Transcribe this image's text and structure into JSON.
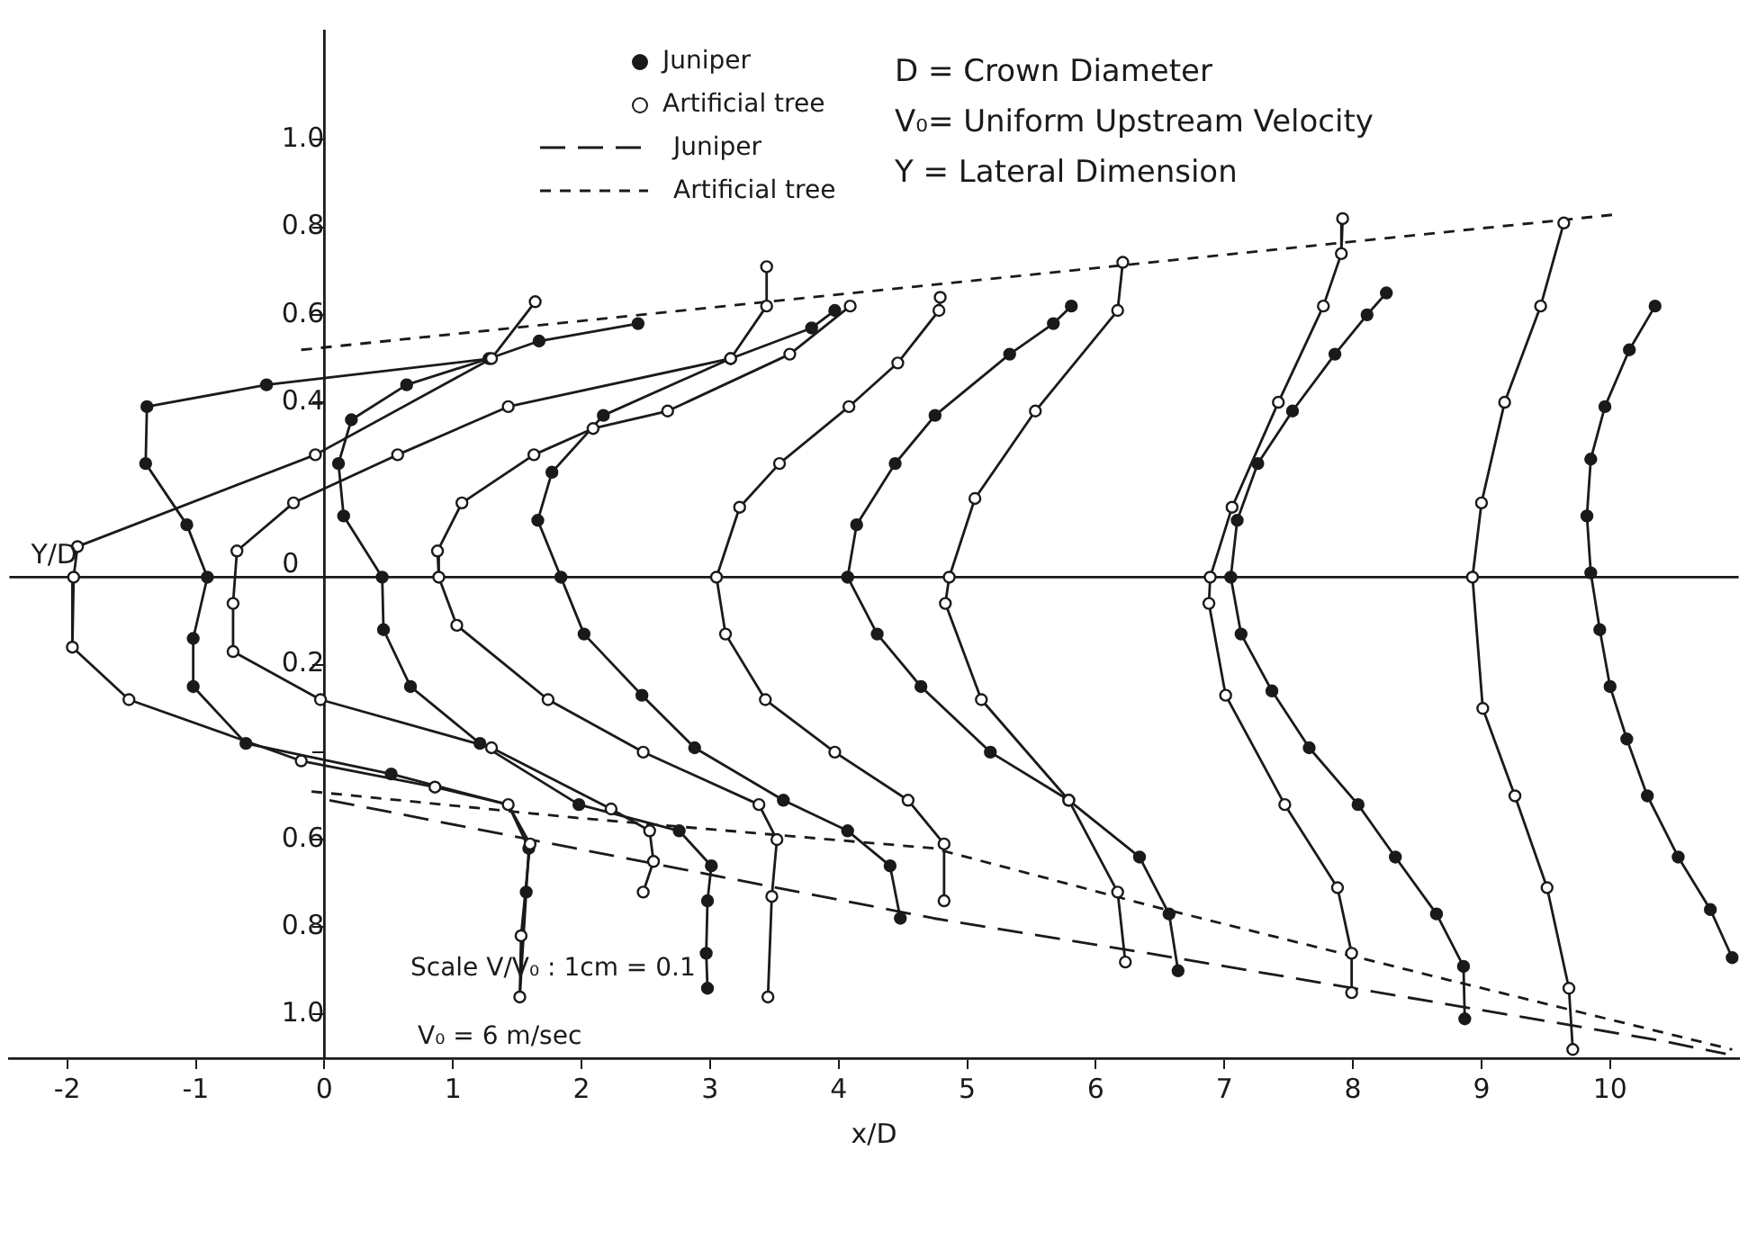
{
  "chart_data": {
    "type": "line",
    "xlabel": "x/D",
    "ylabel": "Y/D",
    "xlim": [
      -2.45,
      11.0
    ],
    "ylim": [
      -1.1,
      1.25
    ],
    "xticks": [
      -2,
      -1,
      0,
      1,
      2,
      3,
      4,
      5,
      6,
      7,
      8,
      9,
      10
    ],
    "yticks": [
      {
        "value": 1,
        "label": "1.0"
      },
      0.8,
      0.6,
      0.4,
      0,
      {
        "value": -0.2,
        "label": "0.2"
      },
      {
        "value": -0.4,
        "label": null
      },
      {
        "value": -0.6,
        "label": "0.6"
      },
      {
        "value": -0.8,
        "label": "0.8"
      },
      {
        "value": -1,
        "label": "1.0"
      }
    ],
    "grid": false,
    "legend": "top",
    "ref_lines": [
      {
        "axis": "y",
        "value": 0
      }
    ],
    "annotations": [
      "D = Crown Diameter",
      "V₀= Uniform Upstream Velocity",
      "Y = Lateral Dimension",
      "Scale V/V₀ : 1cm = 0.1",
      "V₀ = 6 m/sec"
    ],
    "series": [
      {
        "color": "#1a1a1a",
        "marker": "none",
        "line_style": "solid",
        "x": [
          1.64,
          1.3,
          -0.07,
          -1.92,
          -1.95,
          -1.96,
          -1.52,
          -0.18,
          0.86,
          1.43,
          1.6,
          1.53,
          1.52
        ],
        "values": [
          0.63,
          0.5,
          0.28,
          0.07,
          0,
          -0.16,
          -0.28,
          -0.42,
          -0.48,
          -0.52,
          -0.61,
          -0.82,
          -0.96
        ]
      },
      {
        "color": "#1a1a1a",
        "marker": "none",
        "line_style": "solid",
        "x": [
          1.3,
          -0.45,
          -1.38,
          -1.39,
          -1.07,
          -0.91,
          -1.02,
          -1.02,
          -0.61,
          0.52,
          1.43,
          1.59,
          1.57,
          1.52
        ],
        "values": [
          0.5,
          0.44,
          0.39,
          0.26,
          0.12,
          0,
          -0.14,
          -0.25,
          -0.38,
          -0.45,
          -0.52,
          -0.62,
          -0.72,
          -0.96
        ]
      },
      {
        "color": "#1a1a1a",
        "marker": "none",
        "line_style": "solid",
        "x": [
          3.44,
          3.44,
          3.16,
          1.43,
          0.57,
          -0.24,
          -0.68,
          -0.71,
          -0.71,
          -0.03,
          1.3,
          2.23,
          2.53,
          2.56,
          2.48
        ],
        "values": [
          0.71,
          0.62,
          0.5,
          0.39,
          0.28,
          0.17,
          0.06,
          -0.06,
          -0.17,
          -0.28,
          -0.39,
          -0.53,
          -0.58,
          -0.65,
          -0.72
        ]
      },
      {
        "color": "#1a1a1a",
        "marker": "none",
        "line_style": "solid",
        "x": [
          2.44,
          1.67,
          1.28,
          0.64,
          0.21,
          0.11,
          0.15,
          0.45,
          0.46,
          0.67,
          1.21,
          1.98,
          2.76,
          3.01,
          2.98,
          2.97,
          2.98
        ],
        "values": [
          0.58,
          0.54,
          0.5,
          0.44,
          0.36,
          0.26,
          0.14,
          0,
          -0.12,
          -0.25,
          -0.38,
          -0.52,
          -0.58,
          -0.66,
          -0.74,
          -0.86,
          -0.94
        ]
      },
      {
        "color": "#1a1a1a",
        "marker": "none",
        "line_style": "solid",
        "x": [
          4.09,
          3.62,
          2.67,
          2.09,
          1.63,
          1.07,
          0.88,
          0.89,
          1.03,
          1.74,
          2.48,
          3.38,
          3.52,
          3.48,
          3.45
        ],
        "values": [
          0.62,
          0.51,
          0.38,
          0.34,
          0.28,
          0.17,
          0.06,
          0,
          -0.11,
          -0.28,
          -0.4,
          -0.52,
          -0.6,
          -0.73,
          -0.96
        ]
      },
      {
        "color": "#1a1a1a",
        "marker": "none",
        "line_style": "solid",
        "x": [
          3.97,
          3.79,
          3.16,
          2.17,
          1.77,
          1.66,
          1.84,
          2.02,
          2.47,
          2.88,
          3.57,
          4.07,
          4.4,
          4.48
        ],
        "values": [
          0.61,
          0.57,
          0.5,
          0.37,
          0.24,
          0.13,
          0,
          -0.13,
          -0.27,
          -0.39,
          -0.51,
          -0.58,
          -0.66,
          -0.78
        ]
      },
      {
        "color": "#1a1a1a",
        "marker": "none",
        "line_style": "solid",
        "x": [
          4.79,
          4.78,
          4.46,
          4.08,
          3.54,
          3.23,
          3.05,
          3.12,
          3.43,
          3.97,
          4.54,
          4.82,
          4.82
        ],
        "values": [
          0.64,
          0.61,
          0.49,
          0.39,
          0.26,
          0.16,
          0,
          -0.13,
          -0.28,
          -0.4,
          -0.51,
          -0.61,
          -0.74
        ]
      },
      {
        "color": "#1a1a1a",
        "marker": "none",
        "line_style": "solid",
        "x": [
          5.81,
          5.67,
          5.33,
          4.75,
          4.44,
          4.14,
          4.07,
          4.3,
          4.64,
          5.18,
          5.79,
          6.34,
          6.57,
          6.64
        ],
        "values": [
          0.62,
          0.58,
          0.51,
          0.37,
          0.26,
          0.12,
          0,
          -0.13,
          -0.25,
          -0.4,
          -0.51,
          -0.64,
          -0.77,
          -0.9
        ]
      },
      {
        "color": "#1a1a1a",
        "marker": "none",
        "line_style": "solid",
        "x": [
          6.21,
          6.17,
          5.53,
          5.06,
          4.86,
          4.83,
          5.11,
          5.79,
          6.17,
          6.23
        ],
        "values": [
          0.72,
          0.61,
          0.38,
          0.18,
          0,
          -0.06,
          -0.28,
          -0.51,
          -0.72,
          -0.88
        ]
      },
      {
        "color": "#1a1a1a",
        "marker": "none",
        "line_style": "solid",
        "x": [
          7.92,
          7.91,
          7.77,
          7.42,
          7.06,
          6.89,
          6.88,
          7.01,
          7.47,
          7.88,
          7.99,
          7.99
        ],
        "values": [
          0.82,
          0.74,
          0.62,
          0.4,
          0.16,
          0,
          -0.06,
          -0.27,
          -0.52,
          -0.71,
          -0.86,
          -0.95
        ]
      },
      {
        "color": "#1a1a1a",
        "marker": "none",
        "line_style": "solid",
        "x": [
          8.26,
          8.11,
          7.86,
          7.53,
          7.26,
          7.1,
          7.05,
          7.13,
          7.37,
          7.66,
          8.04,
          8.33,
          8.65,
          8.86,
          8.87
        ],
        "values": [
          0.65,
          0.6,
          0.51,
          0.38,
          0.26,
          0.13,
          0,
          -0.13,
          -0.26,
          -0.39,
          -0.52,
          -0.64,
          -0.77,
          -0.89,
          -1.01
        ]
      },
      {
        "color": "#1a1a1a",
        "marker": "none",
        "line_style": "solid",
        "x": [
          9.64,
          9.46,
          9.18,
          9.0,
          8.93,
          9.01,
          9.26,
          9.51,
          9.68,
          9.71
        ],
        "values": [
          0.81,
          0.62,
          0.4,
          0.17,
          0,
          -0.3,
          -0.5,
          -0.71,
          -0.94,
          -1.08
        ]
      },
      {
        "color": "#1a1a1a",
        "marker": "none",
        "line_style": "solid",
        "x": [
          10.35,
          10.15,
          9.96,
          9.85,
          9.82,
          9.85,
          9.92,
          10.0,
          10.13,
          10.29,
          10.53,
          10.78,
          10.95
        ],
        "values": [
          0.62,
          0.52,
          0.39,
          0.27,
          0.14,
          0.01,
          -0.12,
          -0.25,
          -0.37,
          -0.5,
          -0.64,
          -0.76,
          -0.87
        ]
      },
      {
        "name": "Juniper",
        "type": "scatter",
        "color": "#1a1a1a",
        "marker": "circle",
        "x": [
          -0.45,
          -1.38,
          -1.39,
          -1.07,
          -0.91,
          -1.02,
          -1.02,
          -0.61,
          0.52,
          1.59,
          1.57,
          2.44,
          1.67,
          1.28,
          0.64,
          0.21,
          0.11,
          0.15,
          0.45,
          0.46,
          0.67,
          1.21,
          1.98,
          2.76,
          3.01,
          2.98,
          2.97,
          2.98,
          3.97,
          3.79,
          3.16,
          2.17,
          1.77,
          1.66,
          1.84,
          2.02,
          2.47,
          2.88,
          3.57,
          4.07,
          4.4,
          4.48,
          5.81,
          5.67,
          5.33,
          4.75,
          4.44,
          4.14,
          4.07,
          4.3,
          4.64,
          5.18,
          5.79,
          6.34,
          6.57,
          6.64,
          8.26,
          8.11,
          7.86,
          7.53,
          7.26,
          7.1,
          7.05,
          7.13,
          7.37,
          7.66,
          8.04,
          8.33,
          8.65,
          8.86,
          8.87,
          10.35,
          10.15,
          9.96,
          9.85,
          9.82,
          9.85,
          9.92,
          10.0,
          10.13,
          10.29,
          10.53,
          10.78,
          10.95
        ],
        "values": [
          0.44,
          0.39,
          0.26,
          0.12,
          0,
          -0.14,
          -0.25,
          -0.38,
          -0.45,
          -0.62,
          -0.72,
          0.58,
          0.54,
          0.5,
          0.44,
          0.36,
          0.26,
          0.14,
          0,
          -0.12,
          -0.25,
          -0.38,
          -0.52,
          -0.58,
          -0.66,
          -0.74,
          -0.86,
          -0.94,
          0.61,
          0.57,
          0.5,
          0.37,
          0.24,
          0.13,
          0,
          -0.13,
          -0.27,
          -0.39,
          -0.51,
          -0.58,
          -0.66,
          -0.78,
          0.62,
          0.58,
          0.51,
          0.37,
          0.26,
          0.12,
          0,
          -0.13,
          -0.25,
          -0.4,
          -0.51,
          -0.64,
          -0.77,
          -0.9,
          0.65,
          0.6,
          0.51,
          0.38,
          0.26,
          0.13,
          0,
          -0.13,
          -0.26,
          -0.39,
          -0.52,
          -0.64,
          -0.77,
          -0.89,
          -1.01,
          0.62,
          0.52,
          0.39,
          0.27,
          0.14,
          0.01,
          -0.12,
          -0.25,
          -0.37,
          -0.5,
          -0.64,
          -0.76,
          -0.87
        ]
      },
      {
        "name": "Artificial tree",
        "type": "scatter",
        "color": "#ffffff",
        "marker": "circle",
        "x": [
          1.64,
          1.3,
          -0.07,
          -1.92,
          -1.95,
          -1.96,
          -1.52,
          -0.18,
          0.86,
          1.43,
          1.6,
          1.53,
          1.52,
          3.44,
          3.44,
          3.16,
          1.43,
          0.57,
          -0.24,
          -0.68,
          -0.71,
          -0.71,
          -0.03,
          1.3,
          2.23,
          2.53,
          2.56,
          2.48,
          4.09,
          3.62,
          2.67,
          2.09,
          1.63,
          1.07,
          0.88,
          0.89,
          1.03,
          1.74,
          2.48,
          3.38,
          3.52,
          3.48,
          3.45,
          4.79,
          4.78,
          4.46,
          4.08,
          3.54,
          3.23,
          3.05,
          3.12,
          3.43,
          3.97,
          4.54,
          4.82,
          4.82,
          6.21,
          6.17,
          5.53,
          5.06,
          4.86,
          4.83,
          5.11,
          5.79,
          6.17,
          6.23,
          7.92,
          7.91,
          7.77,
          7.42,
          7.06,
          6.89,
          6.88,
          7.01,
          7.47,
          7.88,
          7.99,
          7.99,
          9.64,
          9.46,
          9.18,
          9.0,
          8.93,
          9.01,
          9.26,
          9.51,
          9.68,
          9.71
        ],
        "values": [
          0.63,
          0.5,
          0.28,
          0.07,
          0,
          -0.16,
          -0.28,
          -0.42,
          -0.48,
          -0.52,
          -0.61,
          -0.82,
          -0.96,
          0.71,
          0.62,
          0.5,
          0.39,
          0.28,
          0.17,
          0.06,
          -0.06,
          -0.17,
          -0.28,
          -0.39,
          -0.53,
          -0.58,
          -0.65,
          -0.72,
          0.62,
          0.51,
          0.38,
          0.34,
          0.28,
          0.17,
          0.06,
          0,
          -0.11,
          -0.28,
          -0.4,
          -0.52,
          -0.6,
          -0.73,
          -0.96,
          0.64,
          0.61,
          0.49,
          0.39,
          0.26,
          0.16,
          0,
          -0.13,
          -0.28,
          -0.4,
          -0.51,
          -0.61,
          -0.74,
          0.72,
          0.61,
          0.38,
          0.18,
          0,
          -0.06,
          -0.28,
          -0.51,
          -0.72,
          -0.88,
          0.82,
          0.74,
          0.62,
          0.4,
          0.16,
          0,
          -0.06,
          -0.27,
          -0.52,
          -0.71,
          -0.86,
          -0.95,
          0.81,
          0.62,
          0.4,
          0.17,
          0,
          -0.3,
          -0.5,
          -0.71,
          -0.94,
          -1.08
        ]
      },
      {
        "name": "Juniper",
        "color": "#1a1a1a",
        "marker": "none",
        "line_style": "dashed",
        "x": [
          0.04,
          1.95,
          4.74,
          6.41,
          10.4,
          10.9
        ],
        "values": [
          -0.51,
          -0.62,
          -0.78,
          -0.86,
          -1.06,
          -1.09
        ]
      },
      {
        "name": "Artificial tree",
        "color": "#1a1a1a",
        "marker": "none",
        "line_style": "dashed",
        "x": [
          -0.1,
          1.95,
          4.74,
          6.41,
          8.73,
          10.95,
          10.5,
          -0.18,
          10.06
        ],
        "values": [
          -0.49,
          -0.55,
          -0.62,
          -0.75,
          -0.92,
          -1.08,
          null,
          0.52,
          0.83
        ]
      }
    ]
  }
}
